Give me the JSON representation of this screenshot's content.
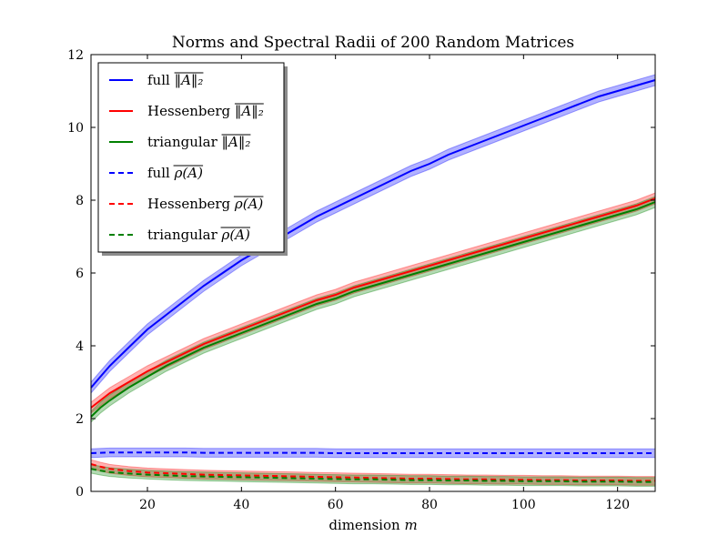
{
  "chart_data": {
    "type": "line",
    "title": "Norms and Spectral Radii of 200 Random Matrices",
    "xlabel": "dimension m",
    "ylabel": "",
    "xlim": [
      8,
      128
    ],
    "ylim": [
      0,
      12
    ],
    "xticks": [
      20,
      40,
      60,
      80,
      100,
      120
    ],
    "yticks": [
      0,
      2,
      4,
      6,
      8,
      10,
      12
    ],
    "grid": false,
    "legend_position": "upper-left",
    "x": [
      8,
      10,
      12,
      16,
      20,
      24,
      28,
      32,
      36,
      40,
      44,
      48,
      52,
      56,
      60,
      64,
      68,
      72,
      76,
      80,
      84,
      88,
      92,
      96,
      100,
      104,
      108,
      112,
      116,
      120,
      124,
      128
    ],
    "series": [
      {
        "name": "full ‖A‖₂ (mean)",
        "label_prefix": "full",
        "label_math": "‖A‖₂",
        "color": "#0000ff",
        "dash": "solid",
        "band": 0.15,
        "values": [
          2.85,
          3.15,
          3.45,
          3.95,
          4.45,
          4.85,
          5.25,
          5.65,
          6.0,
          6.35,
          6.65,
          6.95,
          7.25,
          7.55,
          7.8,
          8.05,
          8.3,
          8.55,
          8.8,
          9.0,
          9.25,
          9.45,
          9.65,
          9.85,
          10.05,
          10.25,
          10.45,
          10.65,
          10.85,
          11.0,
          11.15,
          11.3
        ]
      },
      {
        "name": "Hessenberg ‖A‖₂ (mean)",
        "label_prefix": "Hessenberg",
        "label_math": "‖A‖₂",
        "color": "#ff0000",
        "dash": "solid",
        "band": 0.15,
        "values": [
          2.3,
          2.5,
          2.7,
          3.0,
          3.3,
          3.55,
          3.8,
          4.05,
          4.25,
          4.45,
          4.65,
          4.85,
          5.05,
          5.25,
          5.4,
          5.6,
          5.75,
          5.9,
          6.05,
          6.2,
          6.35,
          6.5,
          6.65,
          6.8,
          6.95,
          7.1,
          7.25,
          7.4,
          7.55,
          7.7,
          7.85,
          8.05
        ]
      },
      {
        "name": "triangular ‖A‖₂ (mean)",
        "label_prefix": "triangular",
        "label_math": "‖A‖₂",
        "color": "#008000",
        "dash": "solid",
        "band": 0.15,
        "values": [
          2.05,
          2.3,
          2.5,
          2.85,
          3.15,
          3.45,
          3.7,
          3.95,
          4.15,
          4.35,
          4.55,
          4.75,
          4.95,
          5.15,
          5.3,
          5.5,
          5.65,
          5.8,
          5.95,
          6.1,
          6.25,
          6.4,
          6.55,
          6.7,
          6.85,
          7.0,
          7.15,
          7.3,
          7.45,
          7.6,
          7.75,
          7.95
        ]
      },
      {
        "name": "full ρ(A) (mean)",
        "label_prefix": "full",
        "label_math": "ρ(A)",
        "color": "#0000ff",
        "dash": "dashed",
        "band": 0.12,
        "values": [
          1.05,
          1.06,
          1.07,
          1.07,
          1.07,
          1.07,
          1.07,
          1.06,
          1.06,
          1.06,
          1.06,
          1.06,
          1.06,
          1.06,
          1.05,
          1.05,
          1.05,
          1.05,
          1.05,
          1.05,
          1.05,
          1.05,
          1.05,
          1.05,
          1.05,
          1.05,
          1.05,
          1.05,
          1.05,
          1.05,
          1.05,
          1.05
        ]
      },
      {
        "name": "Hessenberg ρ(A) (mean)",
        "label_prefix": "Hessenberg",
        "label_math": "ρ(A)",
        "color": "#ff0000",
        "dash": "dashed",
        "band": 0.12,
        "values": [
          0.75,
          0.68,
          0.62,
          0.56,
          0.52,
          0.5,
          0.48,
          0.46,
          0.45,
          0.44,
          0.43,
          0.42,
          0.41,
          0.4,
          0.39,
          0.38,
          0.37,
          0.36,
          0.35,
          0.35,
          0.34,
          0.33,
          0.33,
          0.32,
          0.32,
          0.31,
          0.31,
          0.3,
          0.3,
          0.3,
          0.29,
          0.29
        ]
      },
      {
        "name": "triangular ρ(A) (mean)",
        "label_prefix": "triangular",
        "label_math": "ρ(A)",
        "color": "#008000",
        "dash": "dashed",
        "band": 0.12,
        "values": [
          0.62,
          0.57,
          0.53,
          0.49,
          0.46,
          0.44,
          0.42,
          0.41,
          0.4,
          0.39,
          0.38,
          0.37,
          0.36,
          0.35,
          0.34,
          0.33,
          0.33,
          0.32,
          0.31,
          0.31,
          0.3,
          0.3,
          0.29,
          0.29,
          0.28,
          0.28,
          0.28,
          0.27,
          0.27,
          0.27,
          0.26,
          0.26
        ]
      }
    ]
  }
}
